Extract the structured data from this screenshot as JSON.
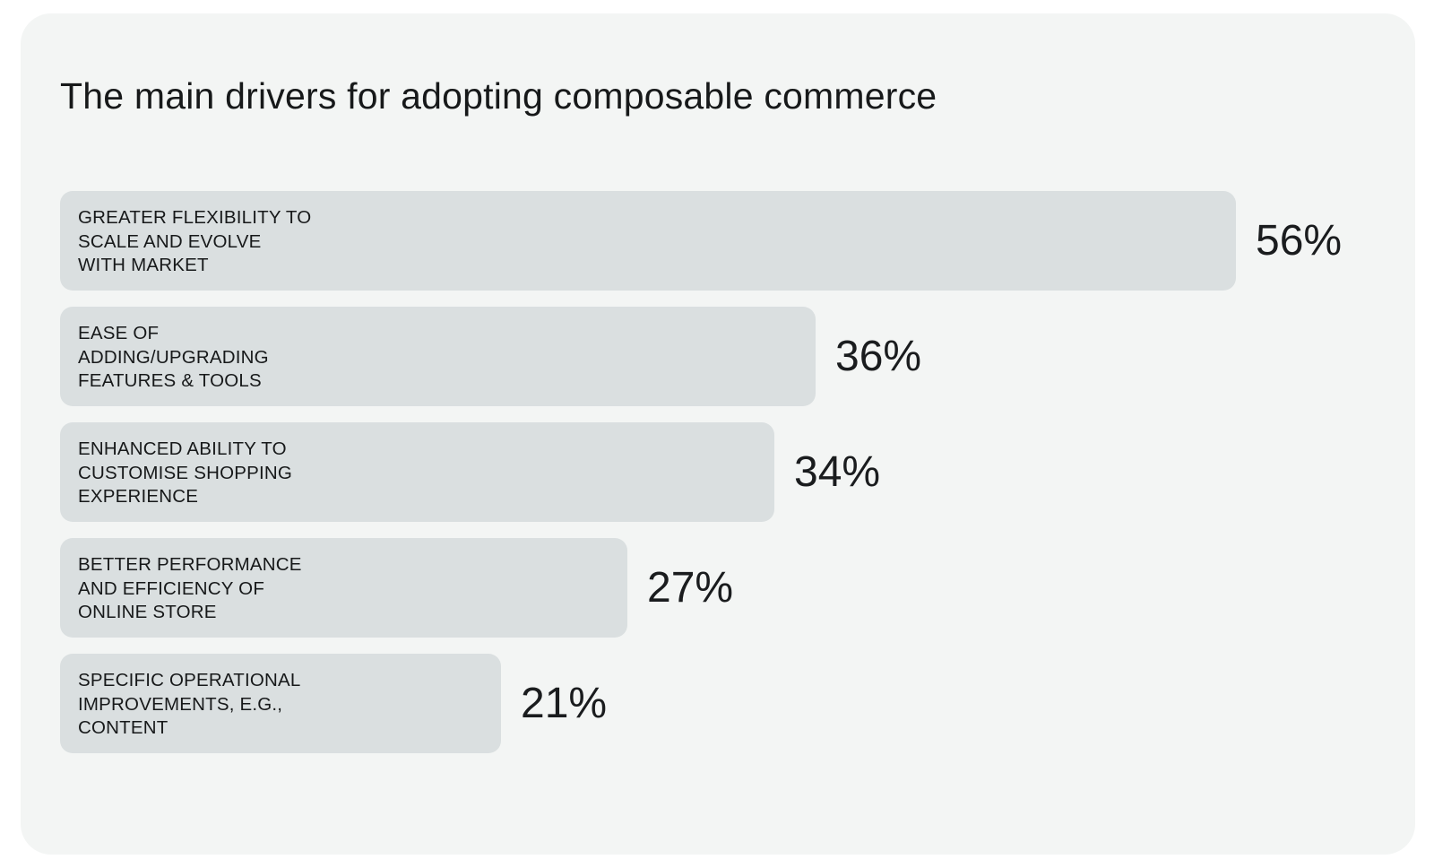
{
  "chart_data": {
    "type": "bar",
    "orientation": "horizontal",
    "title": "The main drivers for adopting composable commerce",
    "categories": [
      "GREATER FLEXIBILITY TO SCALE AND EVOLVE WITH MARKET",
      "EASE OF ADDING/UPGRADING FEATURES & TOOLS",
      "ENHANCED ABILITY TO CUSTOMISE SHOPPING EXPERIENCE",
      "BETTER PERFORMANCE AND EFFICIENCY OF ONLINE STORE",
      "SPECIFIC OPERATIONAL IMPROVEMENTS, E.G., CONTENT"
    ],
    "label_lines": [
      [
        "GREATER FLEXIBILITY TO",
        "SCALE AND EVOLVE",
        "WITH MARKET"
      ],
      [
        "EASE OF",
        "ADDING/UPGRADING",
        "FEATURES & TOOLS"
      ],
      [
        "ENHANCED ABILITY TO",
        "CUSTOMISE SHOPPING",
        "EXPERIENCE"
      ],
      [
        "BETTER PERFORMANCE",
        "AND EFFICIENCY OF",
        "ONLINE STORE"
      ],
      [
        "SPECIFIC OPERATIONAL",
        "IMPROVEMENTS, E.G.,",
        "CONTENT"
      ]
    ],
    "values": [
      56,
      36,
      34,
      27,
      21
    ],
    "value_labels": [
      "56%",
      "36%",
      "34%",
      "27%",
      "21%"
    ],
    "unit": "%",
    "xlabel": "",
    "ylabel": "",
    "grid": false,
    "legend": "none",
    "colors": {
      "background": "#f3f5f4",
      "bar": "#dadfe0",
      "text": "#17191a"
    }
  }
}
